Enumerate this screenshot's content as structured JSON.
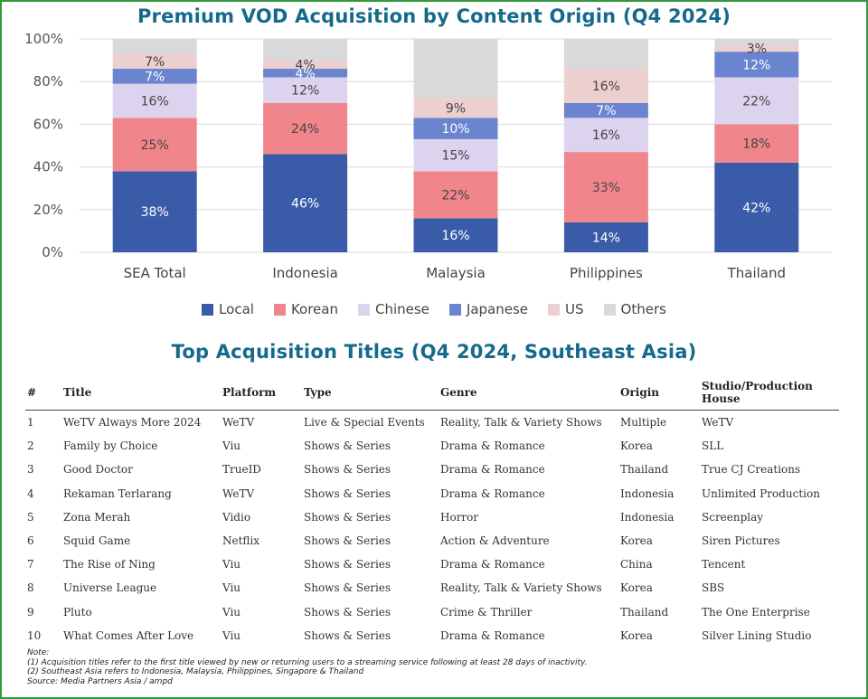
{
  "chart_data": {
    "type": "bar",
    "stacked": true,
    "title": "Premium VOD Acquisition by Content Origin (Q4 2024)",
    "categories": [
      "SEA Total",
      "Indonesia",
      "Malaysia",
      "Philippines",
      "Thailand"
    ],
    "ylim": [
      0,
      100
    ],
    "yticks": [
      "0%",
      "20%",
      "40%",
      "60%",
      "80%",
      "100%"
    ],
    "grid": true,
    "legend_position": "bottom",
    "series": [
      {
        "name": "Local",
        "color": "#3a5ca8",
        "values": [
          38,
          46,
          16,
          14,
          42
        ],
        "labels": [
          "38%",
          "46%",
          "16%",
          "14%",
          "42%"
        ],
        "label_color": "#ffffff"
      },
      {
        "name": "Korean",
        "color": "#f0868c",
        "values": [
          25,
          24,
          22,
          33,
          18
        ],
        "labels": [
          "25%",
          "24%",
          "22%",
          "33%",
          "18%"
        ],
        "label_color": "#444444"
      },
      {
        "name": "Chinese",
        "color": "#dcd3ee",
        "values": [
          16,
          12,
          15,
          16,
          22
        ],
        "labels": [
          "16%",
          "12%",
          "15%",
          "16%",
          "22%"
        ],
        "label_color": "#444444"
      },
      {
        "name": "Japanese",
        "color": "#6a84cf",
        "values": [
          7,
          4,
          10,
          7,
          12
        ],
        "labels": [
          "7%",
          "4%",
          "10%",
          "7%",
          "12%"
        ],
        "label_color": "#ffffff"
      },
      {
        "name": "US",
        "color": "#ecd0d0",
        "values": [
          7,
          4,
          9,
          16,
          3
        ],
        "labels": [
          "7%",
          "4%",
          "9%",
          "16%",
          "3%"
        ],
        "label_color": "#444444"
      },
      {
        "name": "Others",
        "color": "#d9d9d9",
        "values": [
          7,
          10,
          28,
          14,
          3
        ],
        "labels": [
          "",
          "",
          "",
          "",
          ""
        ],
        "label_color": "#444444"
      }
    ]
  },
  "table": {
    "title": "Top Acquisition Titles (Q4 2024, Southeast Asia)",
    "headers": [
      "#",
      "Title",
      "Platform",
      "Type",
      "Genre",
      "Origin",
      "Studio/Production House"
    ],
    "rows": [
      [
        "1",
        "WeTV Always More 2024",
        "WeTV",
        "Live & Special Events",
        "Reality, Talk & Variety Shows",
        "Multiple",
        "WeTV"
      ],
      [
        "2",
        "Family by Choice",
        "Viu",
        "Shows & Series",
        "Drama & Romance",
        "Korea",
        "SLL"
      ],
      [
        "3",
        "Good Doctor",
        "TrueID",
        "Shows & Series",
        "Drama & Romance",
        "Thailand",
        "True CJ Creations"
      ],
      [
        "4",
        "Rekaman Terlarang",
        "WeTV",
        "Shows & Series",
        "Drama & Romance",
        "Indonesia",
        "Unlimited Production"
      ],
      [
        "5",
        "Zona Merah",
        "Vidio",
        "Shows & Series",
        "Horror",
        "Indonesia",
        "Screenplay"
      ],
      [
        "6",
        "Squid Game",
        "Netflix",
        "Shows & Series",
        "Action & Adventure",
        "Korea",
        "Siren Pictures"
      ],
      [
        "7",
        "The Rise of Ning",
        "Viu",
        "Shows & Series",
        "Drama & Romance",
        "China",
        "Tencent"
      ],
      [
        "8",
        "Universe League",
        "Viu",
        "Shows & Series",
        "Reality, Talk & Variety Shows",
        "Korea",
        "SBS"
      ],
      [
        "9",
        "Pluto",
        "Viu",
        "Shows & Series",
        "Crime & Thriller",
        "Thailand",
        "The One Enterprise"
      ],
      [
        "10",
        "What Comes After Love",
        "Viu",
        "Shows & Series",
        "Drama & Romance",
        "Korea",
        "Silver Lining Studio"
      ]
    ]
  },
  "notes": {
    "heading": "Note:",
    "line1": "(1) Acquisition titles refer to the first title viewed by new or returning users to a streaming service following at least 28 days of inactivity.",
    "line2": "(2) Southeast Asia refers to Indonesia, Malaysia, Philippines, Singapore & Thailand",
    "source": "Source: Media Partners Asia / ampd"
  },
  "colors": {
    "frame": "#2f9a3a",
    "title": "#156a8c"
  }
}
